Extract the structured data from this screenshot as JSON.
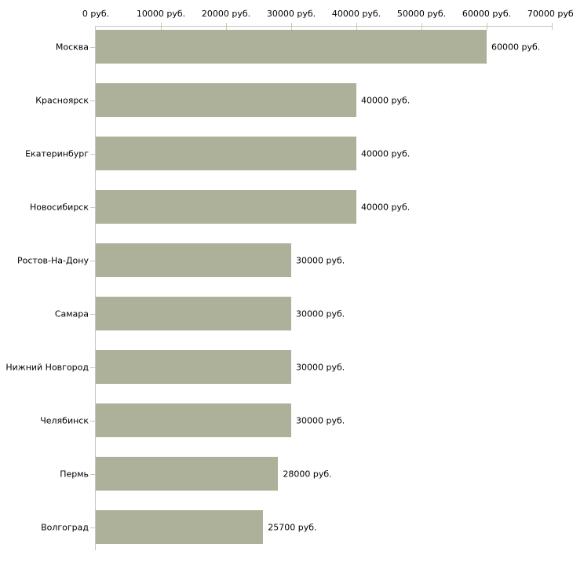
{
  "chart_data": {
    "type": "bar",
    "orientation": "horizontal",
    "title": "",
    "xlabel": "",
    "ylabel": "",
    "categories": [
      "Москва",
      "Красноярск",
      "Екатеринбург",
      "Новосибирск",
      "Ростов-На-Дону",
      "Самара",
      "Нижний Новгород",
      "Челябинск",
      "Пермь",
      "Волгоград"
    ],
    "values": [
      60000,
      40000,
      40000,
      40000,
      30000,
      30000,
      30000,
      30000,
      28000,
      25700
    ],
    "value_labels": [
      "60000 руб.",
      "40000 руб.",
      "40000 руб.",
      "40000 руб.",
      "30000 руб.",
      "30000 руб.",
      "30000 руб.",
      "30000 руб.",
      "28000 руб.",
      "25700 руб."
    ],
    "x_tick_values": [
      0,
      10000,
      20000,
      30000,
      40000,
      50000,
      60000,
      70000
    ],
    "x_tick_labels": [
      "0 руб.",
      "10000 руб.",
      "20000 руб.",
      "30000 руб.",
      "40000 руб.",
      "50000 руб.",
      "60000 руб.",
      "70000 руб."
    ],
    "xlim": [
      0,
      70000
    ],
    "grid": false,
    "legend": false,
    "unit": "руб.",
    "colors": {
      "bar": "#adb199",
      "axis_line": "#c6c6c6",
      "tick": "#c9c9a3",
      "text": "#000000",
      "background": "#ffffff"
    }
  }
}
